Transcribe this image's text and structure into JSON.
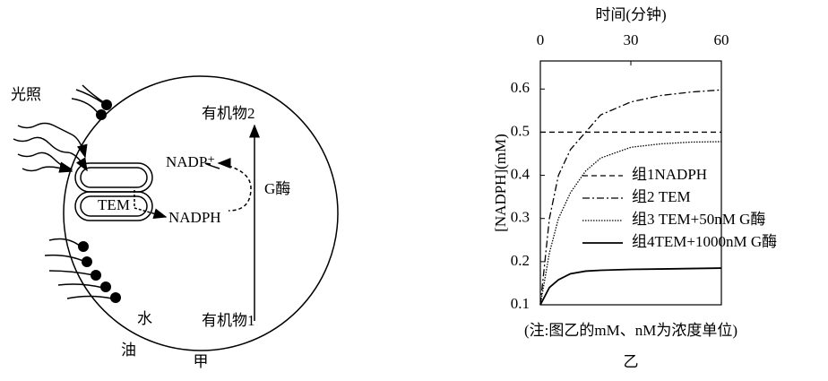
{
  "diagram": {
    "light": "光照",
    "product2": "有机物2",
    "nadp_plus": "NADP⁺",
    "enzyme": "G酶",
    "tem": "TEM",
    "nadph": "NADPH",
    "product1": "有机物1",
    "water": "水",
    "oil": "油",
    "caption": "甲"
  },
  "chart_data": {
    "type": "line",
    "xlabel": "时间(分钟)",
    "ylabel": "[NADPH](mM)",
    "x": [
      0,
      3,
      6,
      10,
      15,
      20,
      30,
      40,
      50,
      60
    ],
    "xlim": [
      0,
      60
    ],
    "xticks": [
      0,
      30,
      60
    ],
    "ylim": [
      0.1,
      0.665
    ],
    "yticks": [
      0.1,
      0.2,
      0.3,
      0.4,
      0.5,
      0.6
    ],
    "series": [
      {
        "name": "组1NADPH",
        "color": "#000000",
        "dash": "6 4",
        "values": [
          0.5,
          0.5,
          0.5,
          0.5,
          0.5,
          0.5,
          0.5,
          0.5,
          0.5,
          0.5
        ]
      },
      {
        "name": "组2 TEM",
        "color": "#000000",
        "dash": "8 3 2 3",
        "values": [
          0.1,
          0.3,
          0.4,
          0.46,
          0.5,
          0.54,
          0.57,
          0.585,
          0.593,
          0.598
        ]
      },
      {
        "name": "组3 TEM+50nM G酶",
        "color": "#000000",
        "dash": "1.5 1.5",
        "values": [
          0.1,
          0.22,
          0.3,
          0.36,
          0.41,
          0.44,
          0.465,
          0.473,
          0.477,
          0.478
        ]
      },
      {
        "name": "组4TEM+1000nM G酶",
        "color": "#000000",
        "dash": "none",
        "values": [
          0.1,
          0.14,
          0.158,
          0.172,
          0.178,
          0.18,
          0.182,
          0.183,
          0.184,
          0.185
        ]
      }
    ],
    "note": "(注:图乙的mM、nM为浓度单位)",
    "caption": "乙"
  }
}
